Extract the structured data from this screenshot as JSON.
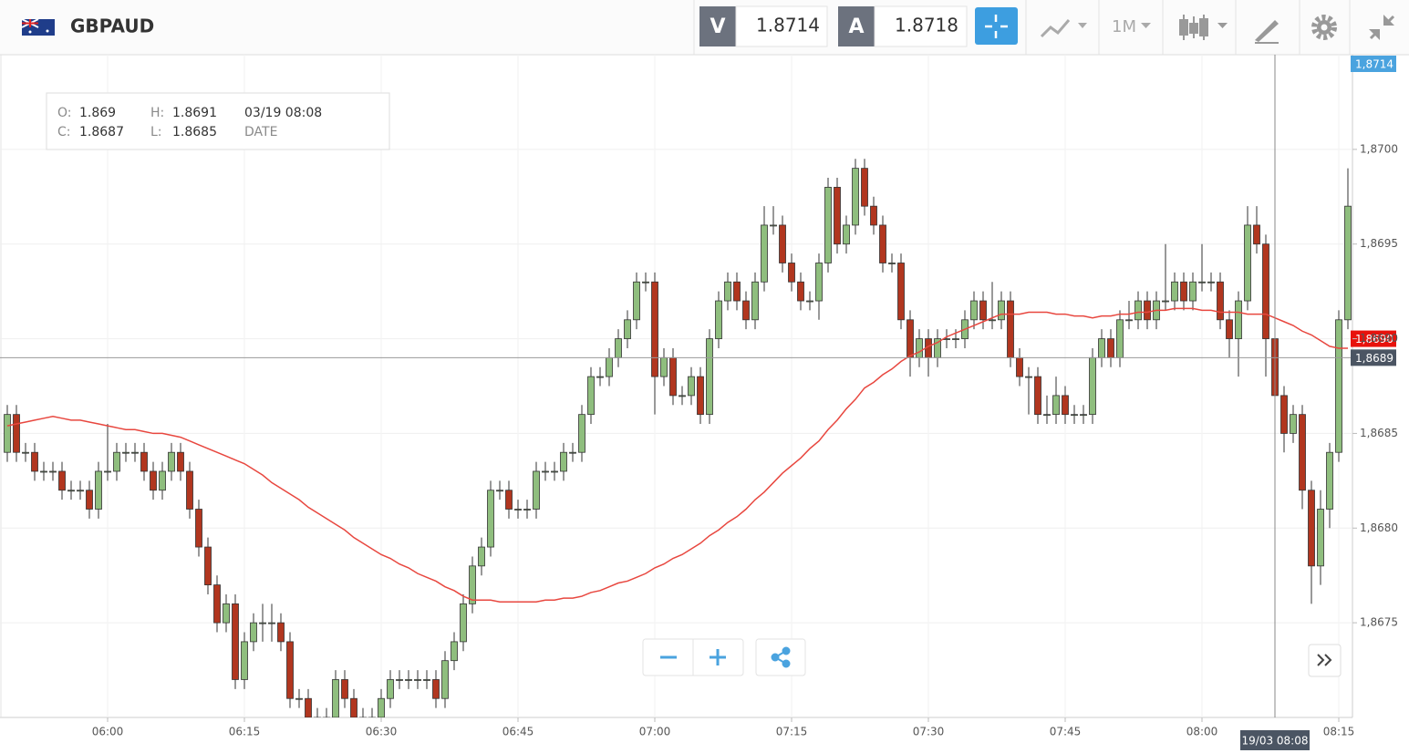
{
  "header": {
    "symbol": "GBPAUD",
    "sell_key": "V",
    "sell_price": 1.8714,
    "buy_key": "A",
    "buy_price": 1.8718,
    "timeframe": "1M"
  },
  "info_box": {
    "open_key": "O:",
    "open": 1.869,
    "high_key": "H:",
    "high": 1.8691,
    "date": "03/19 08:08",
    "close_key": "C:",
    "close": 1.8687,
    "low_key": "L:",
    "low": 1.8685,
    "date_key": "DATE"
  },
  "chart_data": {
    "type": "candlestick",
    "categories": [
      null,
      null,
      null,
      null,
      null,
      null,
      null,
      null,
      null,
      null,
      null,
      "06:00",
      null,
      null,
      null,
      null,
      null,
      null,
      null,
      null,
      null,
      null,
      null,
      null,
      null,
      null,
      "06:15",
      null,
      null,
      null,
      null,
      null,
      null,
      null,
      null,
      null,
      null,
      null,
      null,
      null,
      null,
      "06:30",
      null,
      null,
      null,
      null,
      null,
      null,
      null,
      null,
      null,
      null,
      null,
      null,
      null,
      null,
      "06:45",
      null,
      null,
      null,
      null,
      null,
      null,
      null,
      null,
      null,
      null,
      null,
      null,
      null,
      null,
      "07:00",
      null,
      null,
      null,
      null,
      null,
      null,
      null,
      null,
      null,
      null,
      null,
      null,
      null,
      null,
      "07:15",
      null,
      null,
      null,
      null,
      null,
      null,
      null,
      null,
      null,
      null,
      null,
      null,
      null,
      null,
      "07:30",
      null,
      null,
      null,
      null,
      null,
      null,
      null,
      null,
      null,
      null,
      null,
      null,
      null,
      null,
      "07:45",
      null,
      null,
      null,
      null,
      null,
      null,
      null,
      null,
      null,
      null,
      null,
      null,
      null,
      null,
      "08:00",
      null,
      null,
      null,
      null,
      null,
      null,
      null,
      null,
      null,
      null,
      null,
      null,
      null,
      null,
      "08:15",
      null
    ],
    "open": [
      1.8684,
      1.8686,
      1.8684,
      1.8684,
      1.8683,
      1.8683,
      1.8683,
      1.8682,
      1.8682,
      1.8682,
      1.8681,
      1.8683,
      1.8683,
      1.8684,
      1.8684,
      1.8684,
      1.8683,
      1.8682,
      1.8683,
      1.8684,
      1.8683,
      1.8681,
      1.8679,
      1.8677,
      1.8675,
      1.8676,
      1.8672,
      1.8674,
      1.8675,
      1.8675,
      1.8675,
      1.8674,
      1.8671,
      1.8671,
      1.867,
      1.867,
      1.867,
      1.8672,
      1.8671,
      1.867,
      1.867,
      1.867,
      1.8671,
      1.8672,
      1.8672,
      1.8672,
      1.8672,
      1.8672,
      1.8671,
      1.8673,
      1.8674,
      1.8676,
      1.8678,
      1.8679,
      1.8682,
      1.8682,
      1.8681,
      1.8681,
      1.8681,
      1.8683,
      1.8683,
      1.8683,
      1.8684,
      1.8684,
      1.8686,
      1.8688,
      1.8688,
      1.8689,
      1.869,
      1.8691,
      1.8693,
      1.8693,
      1.8688,
      1.8689,
      1.8687,
      1.8687,
      1.8688,
      1.8686,
      1.869,
      1.8692,
      1.8693,
      1.8692,
      1.8691,
      1.8693,
      1.8696,
      1.8696,
      1.8694,
      1.8693,
      1.8692,
      1.8692,
      1.8694,
      1.8698,
      1.8695,
      1.8696,
      1.8699,
      1.8697,
      1.8696,
      1.8694,
      1.8694,
      1.8691,
      1.8689,
      1.869,
      1.8689,
      1.869,
      1.869,
      1.869,
      1.8691,
      1.8692,
      1.8691,
      1.8691,
      1.8692,
      1.8689,
      1.8688,
      1.8688,
      1.8686,
      1.8686,
      1.8687,
      1.8686,
      1.8686,
      1.8686,
      1.8689,
      1.869,
      1.8689,
      1.8691,
      1.8691,
      1.8692,
      1.8691,
      1.8692,
      1.8692,
      1.8693,
      1.8692,
      1.8693,
      1.8693,
      1.8693,
      1.8691,
      1.869,
      1.8692,
      1.8696,
      1.8695,
      1.869,
      1.8687,
      1.8685,
      1.8686,
      1.8682,
      1.8678,
      1.8681,
      1.8684,
      1.8691
    ],
    "high": [
      1.86865,
      1.86865,
      1.86845,
      1.86845,
      1.86835,
      1.86835,
      1.86835,
      1.86825,
      1.86825,
      1.86825,
      1.86835,
      1.86855,
      1.86845,
      1.86845,
      1.86845,
      1.86845,
      1.86835,
      1.86835,
      1.86845,
      1.86845,
      1.86835,
      1.86815,
      1.86795,
      1.86775,
      1.86765,
      1.86765,
      1.86745,
      1.86755,
      1.8676,
      1.8676,
      1.86755,
      1.86745,
      1.86715,
      1.86715,
      1.86705,
      1.86705,
      1.86725,
      1.86725,
      1.86715,
      1.86705,
      1.86705,
      1.86715,
      1.86725,
      1.86725,
      1.86725,
      1.86725,
      1.86725,
      1.86725,
      1.86735,
      1.86745,
      1.86765,
      1.86785,
      1.86795,
      1.86825,
      1.86825,
      1.86825,
      1.86815,
      1.86815,
      1.86835,
      1.86835,
      1.86835,
      1.86845,
      1.86845,
      1.86865,
      1.86885,
      1.86885,
      1.86895,
      1.86905,
      1.86915,
      1.86935,
      1.86935,
      1.86935,
      1.86895,
      1.86895,
      1.86875,
      1.86885,
      1.86885,
      1.86905,
      1.86925,
      1.86935,
      1.86935,
      1.86925,
      1.86935,
      1.8697,
      1.8697,
      1.86965,
      1.86945,
      1.86935,
      1.86925,
      1.86945,
      1.86985,
      1.86985,
      1.86965,
      1.86995,
      1.86995,
      1.86975,
      1.86965,
      1.86945,
      1.86945,
      1.86915,
      1.86905,
      1.86905,
      1.86905,
      1.86905,
      1.86905,
      1.86915,
      1.86925,
      1.86925,
      1.8693,
      1.86925,
      1.86925,
      1.86895,
      1.86885,
      1.86885,
      1.8687,
      1.8688,
      1.86875,
      1.86865,
      1.86865,
      1.86895,
      1.86905,
      1.86905,
      1.86915,
      1.8692,
      1.86925,
      1.86925,
      1.86925,
      1.8695,
      1.86935,
      1.86935,
      1.86935,
      1.8695,
      1.86935,
      1.86935,
      1.86915,
      1.86925,
      1.8697,
      1.8697,
      1.86955,
      1.8691,
      1.86875,
      1.86865,
      1.86865,
      1.86825,
      1.8682,
      1.86845,
      1.86915,
      1.8699
    ],
    "low": [
      1.86835,
      1.86835,
      1.86835,
      1.86825,
      1.86825,
      1.86825,
      1.86815,
      1.86815,
      1.86815,
      1.86805,
      1.86805,
      1.86825,
      1.86825,
      1.86835,
      1.86835,
      1.86825,
      1.86815,
      1.86815,
      1.86825,
      1.86825,
      1.86805,
      1.86785,
      1.86765,
      1.86745,
      1.86745,
      1.86715,
      1.86715,
      1.86735,
      1.8674,
      1.8674,
      1.86735,
      1.86705,
      1.86705,
      1.86695,
      1.86695,
      1.86695,
      1.86695,
      1.86705,
      1.86695,
      1.86695,
      1.86695,
      1.86695,
      1.86705,
      1.86715,
      1.86715,
      1.86715,
      1.86715,
      1.86705,
      1.86705,
      1.86725,
      1.86735,
      1.86755,
      1.86775,
      1.86785,
      1.86815,
      1.86805,
      1.86805,
      1.86805,
      1.86805,
      1.86825,
      1.86825,
      1.86825,
      1.86835,
      1.86835,
      1.86855,
      1.86875,
      1.86875,
      1.86885,
      1.86895,
      1.86905,
      1.86925,
      1.8686,
      1.86875,
      1.86865,
      1.86865,
      1.86865,
      1.86855,
      1.86855,
      1.86895,
      1.86915,
      1.86915,
      1.86905,
      1.86905,
      1.86925,
      1.86955,
      1.86935,
      1.86925,
      1.86915,
      1.86915,
      1.8691,
      1.86935,
      1.86945,
      1.86945,
      1.86955,
      1.86965,
      1.86955,
      1.86935,
      1.86935,
      1.86905,
      1.8688,
      1.86885,
      1.8688,
      1.86885,
      1.86895,
      1.86895,
      1.86895,
      1.86905,
      1.86905,
      1.86905,
      1.86905,
      1.86885,
      1.86875,
      1.8686,
      1.86855,
      1.86855,
      1.86855,
      1.86855,
      1.86855,
      1.86855,
      1.86855,
      1.86885,
      1.86885,
      1.86885,
      1.86905,
      1.86905,
      1.86905,
      1.86905,
      1.86915,
      1.86915,
      1.86915,
      1.86915,
      1.86925,
      1.86925,
      1.86905,
      1.8689,
      1.8688,
      1.86915,
      1.86945,
      1.8688,
      1.8685,
      1.8684,
      1.86845,
      1.8681,
      1.8676,
      1.8677,
      1.868,
      1.86835,
      1.86905
    ],
    "close": [
      1.8686,
      1.8684,
      1.8684,
      1.8683,
      1.8683,
      1.8683,
      1.8682,
      1.8682,
      1.8682,
      1.8681,
      1.8683,
      1.8683,
      1.8684,
      1.8684,
      1.8684,
      1.8683,
      1.8682,
      1.8683,
      1.8684,
      1.8683,
      1.8681,
      1.8679,
      1.8677,
      1.8675,
      1.8676,
      1.8672,
      1.8674,
      1.8675,
      1.8675,
      1.8675,
      1.8674,
      1.8671,
      1.8671,
      1.867,
      1.867,
      1.867,
      1.8672,
      1.8671,
      1.867,
      1.867,
      1.867,
      1.8671,
      1.8672,
      1.8672,
      1.8672,
      1.8672,
      1.8672,
      1.8671,
      1.8673,
      1.8674,
      1.8676,
      1.8678,
      1.8679,
      1.8682,
      1.8682,
      1.8681,
      1.8681,
      1.8681,
      1.8683,
      1.8683,
      1.8683,
      1.8684,
      1.8684,
      1.8686,
      1.8688,
      1.8688,
      1.8689,
      1.869,
      1.8691,
      1.8693,
      1.8693,
      1.8688,
      1.8689,
      1.8687,
      1.8687,
      1.8688,
      1.8686,
      1.869,
      1.8692,
      1.8693,
      1.8692,
      1.8691,
      1.8693,
      1.8696,
      1.8696,
      1.8694,
      1.8693,
      1.8692,
      1.8692,
      1.8694,
      1.8698,
      1.8695,
      1.8696,
      1.8699,
      1.8697,
      1.8696,
      1.8694,
      1.8694,
      1.8691,
      1.8689,
      1.869,
      1.8689,
      1.869,
      1.869,
      1.869,
      1.8691,
      1.8692,
      1.8691,
      1.8691,
      1.8692,
      1.8689,
      1.8688,
      1.8688,
      1.8686,
      1.8686,
      1.8687,
      1.8686,
      1.8686,
      1.8686,
      1.8689,
      1.869,
      1.8689,
      1.8691,
      1.8691,
      1.8692,
      1.8691,
      1.8692,
      1.8692,
      1.8693,
      1.8692,
      1.8693,
      1.8693,
      1.8693,
      1.8691,
      1.869,
      1.8692,
      1.8696,
      1.8695,
      1.869,
      1.8687,
      1.8685,
      1.8686,
      1.8682,
      1.8678,
      1.8681,
      1.8684,
      1.8691,
      1.8697
    ],
    "up_color": "#8fbe7e",
    "down_color": "#b1361f",
    "moving_average": {
      "color": "#e8473f",
      "values": [
        1.86854,
        1.86855,
        1.86856,
        1.86857,
        1.86858,
        1.86859,
        1.86858,
        1.86857,
        1.86857,
        1.86856,
        1.86855,
        1.86854,
        1.86853,
        1.86852,
        1.86852,
        1.86851,
        1.8685,
        1.8685,
        1.86849,
        1.86848,
        1.86846,
        1.86844,
        1.86842,
        1.8684,
        1.86838,
        1.86836,
        1.86834,
        1.86831,
        1.86828,
        1.86824,
        1.86821,
        1.86818,
        1.86815,
        1.86811,
        1.86808,
        1.86805,
        1.86802,
        1.86799,
        1.86795,
        1.86792,
        1.86789,
        1.86786,
        1.86784,
        1.86781,
        1.86779,
        1.86776,
        1.86774,
        1.86772,
        1.86769,
        1.86767,
        1.86764,
        1.86762,
        1.86762,
        1.86762,
        1.86761,
        1.86761,
        1.86761,
        1.86761,
        1.86761,
        1.86762,
        1.86762,
        1.86763,
        1.86763,
        1.86764,
        1.86766,
        1.86767,
        1.86769,
        1.86771,
        1.86772,
        1.86774,
        1.86776,
        1.86779,
        1.86781,
        1.86784,
        1.86786,
        1.86789,
        1.86792,
        1.86796,
        1.86799,
        1.86803,
        1.86806,
        1.8681,
        1.86815,
        1.86819,
        1.86824,
        1.86829,
        1.86833,
        1.86837,
        1.86842,
        1.86846,
        1.86852,
        1.86857,
        1.86863,
        1.86868,
        1.86874,
        1.86877,
        1.86881,
        1.86884,
        1.86888,
        1.86891,
        1.86893,
        1.86896,
        1.86898,
        1.86901,
        1.86903,
        1.86905,
        1.86907,
        1.86909,
        1.86911,
        1.86913,
        1.86913,
        1.86913,
        1.86914,
        1.86914,
        1.86914,
        1.86913,
        1.86913,
        1.86912,
        1.86912,
        1.86911,
        1.86912,
        1.86912,
        1.86913,
        1.86913,
        1.86914,
        1.86914,
        1.86915,
        1.86915,
        1.86916,
        1.86916,
        1.86916,
        1.86915,
        1.86915,
        1.86914,
        1.86914,
        1.86914,
        1.86913,
        1.86913,
        1.86913,
        1.86911,
        1.86909,
        1.86907,
        1.86904,
        1.86902,
        1.86899,
        1.86896,
        1.86895,
        1.86895
      ]
    },
    "ylim": [
      1.867,
      1.8705
    ],
    "yticks": [
      {
        "value": 1.8675,
        "label": "1,8675"
      },
      {
        "value": 1.868,
        "label": "1,8680"
      },
      {
        "value": 1.8685,
        "label": "1,8685"
      },
      {
        "value": 1.869,
        "label": "1,8690"
      },
      {
        "value": 1.8695,
        "label": "1,8695"
      },
      {
        "value": 1.87,
        "label": "1,8700"
      }
    ],
    "grid": true,
    "price_tags": [
      {
        "value": 1.8714,
        "label": "1,8714",
        "color": "#4aa3df"
      },
      {
        "value": 1.869,
        "label": "1,8690",
        "color": "#e8120c"
      }
    ],
    "crosshair": {
      "x_label": "19/03 08:08",
      "y": {
        "value": 1.8689,
        "label": "1,8689"
      }
    }
  }
}
